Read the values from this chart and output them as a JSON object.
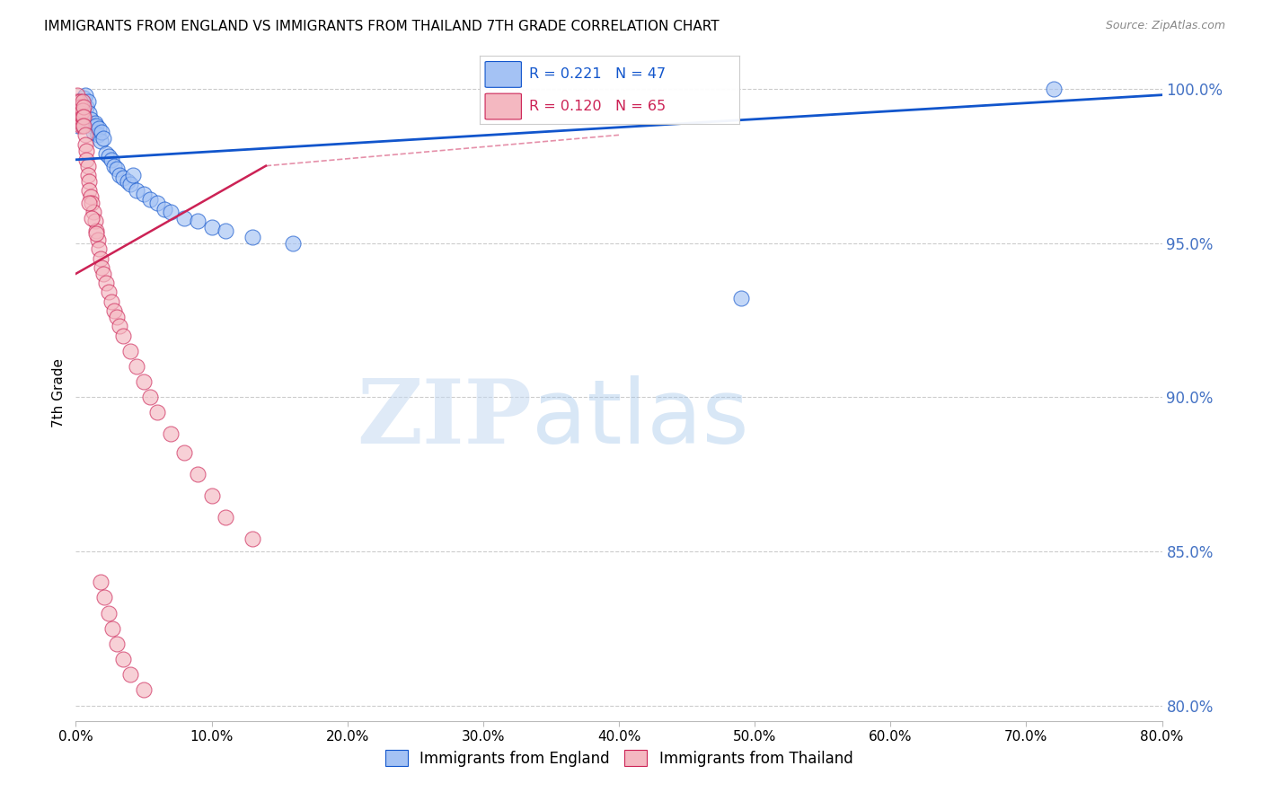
{
  "title": "IMMIGRANTS FROM ENGLAND VS IMMIGRANTS FROM THAILAND 7TH GRADE CORRELATION CHART",
  "source": "Source: ZipAtlas.com",
  "ylabel": "7th Grade",
  "r_england": 0.221,
  "n_england": 47,
  "r_thailand": 0.12,
  "n_thailand": 65,
  "england_color": "#a4c2f4",
  "thailand_color": "#f4b8c1",
  "england_line_color": "#1155cc",
  "thailand_line_color": "#cc2255",
  "watermark_zip": "ZIP",
  "watermark_atlas": "atlas",
  "xmin": 0.0,
  "xmax": 0.8,
  "ymin": 0.795,
  "ymax": 1.008,
  "yticks": [
    0.8,
    0.85,
    0.9,
    0.95,
    1.0
  ],
  "xticks": [
    0.0,
    0.1,
    0.2,
    0.3,
    0.4,
    0.5,
    0.6,
    0.7,
    0.8
  ],
  "england_x": [
    0.001,
    0.002,
    0.003,
    0.004,
    0.004,
    0.005,
    0.005,
    0.006,
    0.006,
    0.007,
    0.008,
    0.009,
    0.01,
    0.011,
    0.012,
    0.013,
    0.014,
    0.015,
    0.016,
    0.017,
    0.018,
    0.019,
    0.02,
    0.022,
    0.024,
    0.026,
    0.028,
    0.03,
    0.032,
    0.035,
    0.038,
    0.04,
    0.042,
    0.045,
    0.05,
    0.055,
    0.06,
    0.065,
    0.07,
    0.08,
    0.09,
    0.1,
    0.11,
    0.13,
    0.16,
    0.49,
    0.72
  ],
  "england_y": [
    0.99,
    0.988,
    0.993,
    0.996,
    0.994,
    0.991,
    0.993,
    0.997,
    0.995,
    0.998,
    0.994,
    0.996,
    0.992,
    0.99,
    0.988,
    0.986,
    0.989,
    0.988,
    0.985,
    0.987,
    0.983,
    0.986,
    0.984,
    0.979,
    0.978,
    0.977,
    0.975,
    0.974,
    0.972,
    0.971,
    0.97,
    0.969,
    0.972,
    0.967,
    0.966,
    0.964,
    0.963,
    0.961,
    0.96,
    0.958,
    0.957,
    0.955,
    0.954,
    0.952,
    0.95,
    0.932,
    1.0
  ],
  "thailand_x": [
    0.001,
    0.001,
    0.002,
    0.002,
    0.002,
    0.003,
    0.003,
    0.003,
    0.004,
    0.004,
    0.004,
    0.005,
    0.005,
    0.005,
    0.005,
    0.006,
    0.006,
    0.006,
    0.007,
    0.007,
    0.008,
    0.008,
    0.009,
    0.009,
    0.01,
    0.01,
    0.011,
    0.012,
    0.013,
    0.014,
    0.015,
    0.016,
    0.017,
    0.018,
    0.019,
    0.02,
    0.022,
    0.024,
    0.026,
    0.028,
    0.03,
    0.032,
    0.035,
    0.04,
    0.045,
    0.05,
    0.055,
    0.06,
    0.07,
    0.08,
    0.09,
    0.1,
    0.11,
    0.13,
    0.01,
    0.012,
    0.015,
    0.018,
    0.021,
    0.024,
    0.027,
    0.03,
    0.035,
    0.04,
    0.05
  ],
  "thailand_y": [
    0.998,
    0.996,
    0.994,
    0.992,
    0.99,
    0.996,
    0.993,
    0.991,
    0.994,
    0.992,
    0.988,
    0.996,
    0.993,
    0.991,
    0.988,
    0.994,
    0.991,
    0.988,
    0.985,
    0.982,
    0.98,
    0.977,
    0.975,
    0.972,
    0.97,
    0.967,
    0.965,
    0.963,
    0.96,
    0.957,
    0.954,
    0.951,
    0.948,
    0.945,
    0.942,
    0.94,
    0.937,
    0.934,
    0.931,
    0.928,
    0.926,
    0.923,
    0.92,
    0.915,
    0.91,
    0.905,
    0.9,
    0.895,
    0.888,
    0.882,
    0.875,
    0.868,
    0.861,
    0.854,
    0.963,
    0.958,
    0.953,
    0.84,
    0.835,
    0.83,
    0.825,
    0.82,
    0.815,
    0.81,
    0.805
  ],
  "trend_england_x0": 0.0,
  "trend_england_x1": 0.8,
  "trend_england_y0": 0.977,
  "trend_england_y1": 0.998,
  "trend_thailand_x0": 0.0,
  "trend_thailand_x1": 0.14,
  "trend_thailand_y0": 0.94,
  "trend_thailand_y1": 0.975
}
